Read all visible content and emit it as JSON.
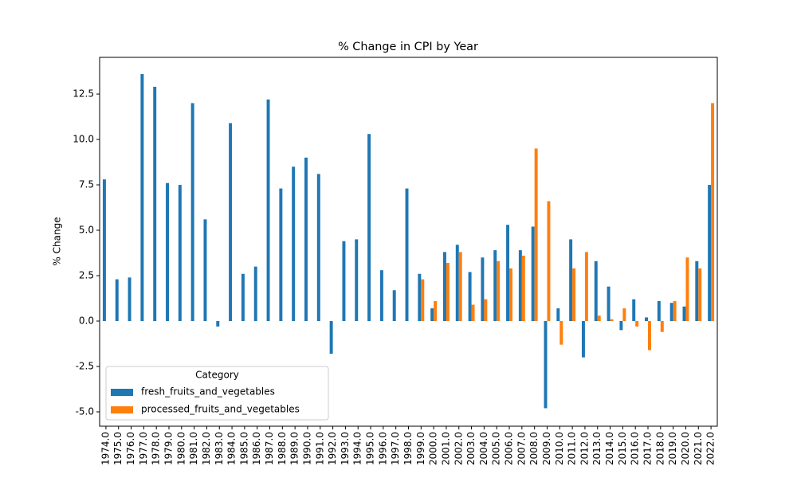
{
  "chart_data": {
    "type": "bar",
    "title": "% Change in CPI by Year",
    "y_label": "% Change",
    "categories": [
      "1974.0",
      "1975.0",
      "1976.0",
      "1977.0",
      "1978.0",
      "1979.0",
      "1980.0",
      "1981.0",
      "1982.0",
      "1983.0",
      "1984.0",
      "1985.0",
      "1986.0",
      "1987.0",
      "1988.0",
      "1989.0",
      "1990.0",
      "1991.0",
      "1992.0",
      "1993.0",
      "1994.0",
      "1995.0",
      "1996.0",
      "1997.0",
      "1998.0",
      "1999.0",
      "2000.0",
      "2001.0",
      "2002.0",
      "2003.0",
      "2004.0",
      "2005.0",
      "2006.0",
      "2007.0",
      "2008.0",
      "2009.0",
      "2010.0",
      "2011.0",
      "2012.0",
      "2013.0",
      "2014.0",
      "2015.0",
      "2016.0",
      "2017.0",
      "2018.0",
      "2019.0",
      "2020.0",
      "2021.0",
      "2022.0"
    ],
    "series": [
      {
        "name": "fresh_fruits_and_vegetables",
        "color": "#1f77b4",
        "values": [
          7.8,
          2.3,
          2.4,
          13.6,
          12.9,
          7.6,
          7.5,
          12.0,
          5.6,
          -0.3,
          10.9,
          2.6,
          3.0,
          12.2,
          7.3,
          8.5,
          9.0,
          8.1,
          -1.8,
          4.4,
          4.5,
          10.3,
          2.8,
          1.7,
          7.3,
          2.6,
          0.7,
          3.8,
          4.2,
          2.7,
          3.5,
          3.9,
          5.3,
          3.9,
          5.2,
          -4.8,
          0.7,
          4.5,
          -2.0,
          3.3,
          1.9,
          -0.5,
          1.2,
          0.2,
          1.1,
          1.0,
          0.8,
          3.3,
          7.5
        ]
      },
      {
        "name": "processed_fruits_and_vegetables",
        "color": "#ff7f0e",
        "values": [
          null,
          null,
          null,
          null,
          null,
          null,
          null,
          null,
          null,
          null,
          null,
          null,
          null,
          null,
          null,
          null,
          null,
          null,
          null,
          null,
          null,
          null,
          null,
          null,
          null,
          2.3,
          1.1,
          3.2,
          3.8,
          0.9,
          1.2,
          3.3,
          2.9,
          3.6,
          9.5,
          6.6,
          -1.3,
          2.9,
          3.8,
          0.3,
          0.1,
          0.7,
          -0.3,
          -1.6,
          -0.6,
          1.1,
          3.5,
          2.9,
          12.0
        ]
      }
    ],
    "ylim": [
      -5.79,
      14.52
    ],
    "yticks": [
      {
        "value": -5,
        "label": "-5.0"
      },
      -2.5,
      {
        "value": 0,
        "label": "0.0"
      },
      2.5,
      {
        "value": 5,
        "label": "5.0"
      },
      7.5,
      {
        "value": 10,
        "label": "10.0"
      },
      12.5
    ],
    "grid": false,
    "legend_title": "Category",
    "legend_position": "lower left"
  }
}
